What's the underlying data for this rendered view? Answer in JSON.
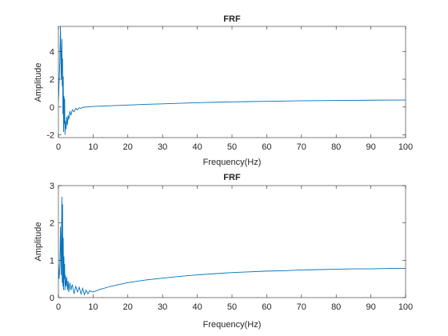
{
  "figure": {
    "background": "#ffffff"
  },
  "chart_data": [
    {
      "type": "line",
      "title": "FRF",
      "xlabel": "Frequency(Hz)",
      "ylabel": "Amplitude",
      "xlim": [
        0,
        100
      ],
      "ylim": [
        -2.2,
        5.8
      ],
      "xticks": [
        0,
        10,
        20,
        30,
        40,
        50,
        60,
        70,
        80,
        90,
        100
      ],
      "xtick_labels": [
        "0",
        "10",
        "20",
        "30",
        "40",
        "50",
        "60",
        "70",
        "80",
        "90",
        "100"
      ],
      "yticks": [
        -2,
        0,
        2,
        4
      ],
      "ytick_labels": [
        "-2",
        "0",
        "2",
        "4"
      ],
      "grid": false,
      "color": "#0072BD",
      "x": [
        0,
        0.2,
        0.4,
        0.6,
        0.8,
        1.0,
        1.1,
        1.2,
        1.3,
        1.4,
        1.5,
        1.6,
        1.7,
        1.8,
        1.9,
        2.0,
        2.2,
        2.4,
        2.6,
        2.8,
        3.0,
        3.3,
        3.6,
        4.0,
        4.5,
        5.0,
        5.5,
        6.0,
        6.5,
        7.0,
        8.0,
        9.0,
        10,
        12,
        15,
        20,
        25,
        30,
        35,
        40,
        45,
        50,
        55,
        60,
        65,
        70,
        75,
        80,
        85,
        90,
        95,
        100
      ],
      "y": [
        0.5,
        1.8,
        3.2,
        5.8,
        2.0,
        4.9,
        1.5,
        3.5,
        -0.5,
        2.2,
        -1.8,
        0.8,
        -1.2,
        0.6,
        -2.0,
        -1.0,
        -1.6,
        -0.7,
        -1.3,
        -0.6,
        -0.9,
        -0.3,
        -0.6,
        -0.2,
        -0.35,
        -0.1,
        -0.2,
        -0.05,
        -0.1,
        -0.02,
        0.0,
        0.02,
        0.04,
        0.06,
        0.09,
        0.14,
        0.19,
        0.23,
        0.27,
        0.31,
        0.34,
        0.37,
        0.39,
        0.41,
        0.43,
        0.45,
        0.46,
        0.47,
        0.48,
        0.49,
        0.5,
        0.5
      ]
    },
    {
      "type": "line",
      "title": "FRF",
      "xlabel": "Frequency(Hz)",
      "ylabel": "Amplitude",
      "xlim": [
        0,
        100
      ],
      "ylim": [
        0,
        3
      ],
      "xticks": [
        0,
        10,
        20,
        30,
        40,
        50,
        60,
        70,
        80,
        90,
        100
      ],
      "xtick_labels": [
        "0",
        "10",
        "20",
        "30",
        "40",
        "50",
        "60",
        "70",
        "80",
        "90",
        "100"
      ],
      "yticks": [
        0,
        1,
        2,
        3
      ],
      "ytick_labels": [
        "0",
        "1",
        "2",
        "3"
      ],
      "grid": false,
      "color": "#0072BD",
      "x": [
        0,
        0.2,
        0.4,
        0.6,
        0.8,
        1.0,
        1.1,
        1.2,
        1.3,
        1.4,
        1.5,
        1.6,
        1.7,
        1.8,
        1.9,
        2.0,
        2.2,
        2.4,
        2.6,
        2.8,
        3.0,
        3.3,
        3.6,
        4.0,
        4.5,
        5.0,
        5.5,
        6.0,
        6.5,
        7.0,
        7.5,
        8.0,
        8.5,
        9.0,
        10,
        12,
        15,
        20,
        25,
        30,
        35,
        40,
        45,
        50,
        55,
        60,
        65,
        70,
        75,
        80,
        85,
        90,
        95,
        100
      ],
      "y": [
        0.9,
        0.5,
        0.8,
        1.9,
        0.6,
        2.7,
        0.4,
        2.5,
        0.3,
        1.6,
        0.2,
        1.1,
        0.5,
        0.9,
        0.2,
        0.6,
        0.3,
        0.55,
        0.2,
        0.45,
        0.15,
        0.4,
        0.2,
        0.35,
        0.1,
        0.3,
        0.15,
        0.28,
        0.1,
        0.25,
        0.08,
        0.2,
        0.1,
        0.18,
        0.15,
        0.22,
        0.3,
        0.4,
        0.47,
        0.52,
        0.57,
        0.61,
        0.64,
        0.67,
        0.69,
        0.71,
        0.72,
        0.74,
        0.75,
        0.76,
        0.77,
        0.77,
        0.78,
        0.78
      ]
    }
  ]
}
